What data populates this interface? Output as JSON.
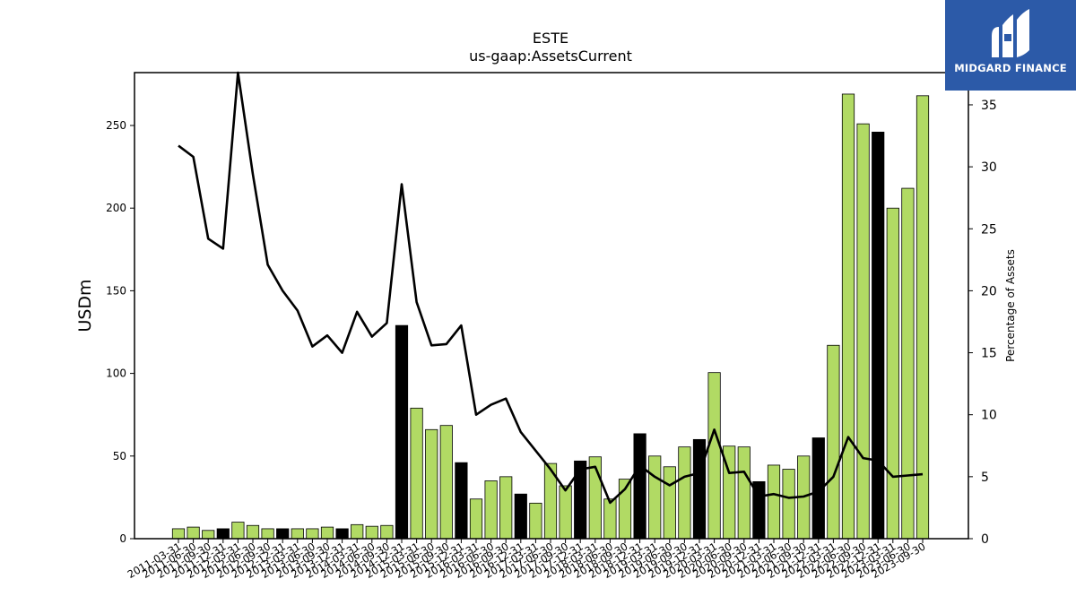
{
  "colors": {
    "bar_green": "#b1da64",
    "bar_black": "#000000",
    "line": "#000000",
    "logo_bg": "#2c5aa8"
  },
  "logo": {
    "text": "MIDGARD FINANCE",
    "icon": "midgard-m-logo-icon"
  },
  "chart_data": {
    "type": "bar",
    "title": "ESTE",
    "subtitle": "us-gaap:AssetsCurrent",
    "ylabel": "USDm",
    "y2label": "Percentage of Assets",
    "ylim": [
      0,
      282
    ],
    "y2lim": [
      0,
      37.6
    ],
    "yticks": [
      0,
      50,
      100,
      150,
      200,
      250
    ],
    "y2ticks": [
      0,
      5,
      10,
      15,
      20,
      25,
      30,
      35
    ],
    "categories": [
      "2011-03-31",
      "2011-06-30",
      "2011-09-30",
      "2011-12-31",
      "2012-03-31",
      "2012-06-30",
      "2012-09-30",
      "2012-12-31",
      "2013-03-31",
      "2013-06-30",
      "2013-09-30",
      "2013-12-31",
      "2014-03-31",
      "2014-06-30",
      "2014-09-30",
      "2014-12-31",
      "2015-03-31",
      "2015-06-30",
      "2015-09-30",
      "2015-12-31",
      "2016-03-31",
      "2016-06-30",
      "2016-09-30",
      "2016-12-31",
      "2017-03-31",
      "2017-06-30",
      "2017-09-30",
      "2017-12-31",
      "2018-03-31",
      "2018-06-30",
      "2018-09-30",
      "2018-12-31",
      "2019-03-31",
      "2019-06-30",
      "2019-09-30",
      "2019-12-31",
      "2020-03-31",
      "2020-06-30",
      "2020-09-30",
      "2020-12-31",
      "2021-03-31",
      "2021-06-30",
      "2021-09-30",
      "2021-12-31",
      "2022-03-31",
      "2022-06-30",
      "2022-09-30",
      "2022-12-31",
      "2023-03-31",
      "2023-06-30",
      "2023-09-30"
    ],
    "series": [
      {
        "type": "bar",
        "values": [
          6,
          7,
          5,
          6,
          10,
          8,
          6,
          6,
          6,
          6,
          7,
          6,
          8.5,
          7.5,
          8,
          129,
          79,
          66,
          68.5,
          46,
          24,
          35,
          37.5,
          27,
          21.5,
          45.5,
          32,
          47,
          49.5,
          24,
          36,
          63.5,
          50,
          43.5,
          55.5,
          60,
          100.5,
          56,
          55.5,
          34.5,
          44.5,
          42,
          50,
          61,
          117,
          269,
          251,
          246,
          200,
          212,
          268
        ],
        "highlight": [
          false,
          false,
          false,
          true,
          false,
          false,
          false,
          true,
          false,
          false,
          false,
          true,
          false,
          false,
          false,
          true,
          false,
          false,
          false,
          true,
          false,
          false,
          false,
          true,
          false,
          false,
          false,
          true,
          false,
          false,
          false,
          true,
          false,
          false,
          false,
          true,
          false,
          false,
          false,
          true,
          false,
          false,
          false,
          true,
          false,
          false,
          false,
          true,
          false,
          false,
          false
        ]
      },
      {
        "type": "line",
        "axis": "right",
        "values": [
          31.7,
          30.8,
          24.2,
          23.4,
          37.6,
          29.4,
          22.1,
          20.0,
          18.4,
          15.5,
          16.4,
          15.0,
          18.3,
          16.3,
          17.4,
          28.6,
          19.1,
          15.6,
          15.7,
          17.2,
          10.0,
          10.8,
          11.3,
          8.6,
          7.1,
          5.6,
          3.9,
          5.6,
          5.8,
          2.9,
          4.0,
          5.9,
          5.0,
          4.3,
          5.0,
          5.3,
          8.8,
          5.3,
          5.4,
          3.4,
          3.6,
          3.3,
          3.4,
          3.8,
          5.0,
          8.2,
          6.5,
          6.3,
          5.0,
          5.1,
          5.2
        ]
      }
    ]
  }
}
